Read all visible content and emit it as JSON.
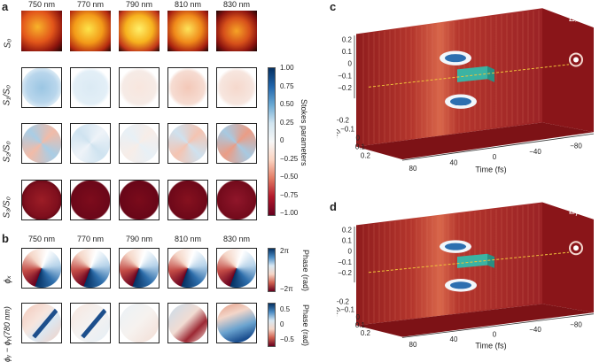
{
  "panels": {
    "a": "a",
    "b": "b",
    "c": "c",
    "d": "d"
  },
  "wavelengths": [
    "750 nm",
    "770 nm",
    "790 nm",
    "810 nm",
    "830 nm"
  ],
  "wavelengths_b": [
    "750 nm",
    "770 nm",
    "790 nm",
    "810 nm",
    "830 nm"
  ],
  "row_labels_a": [
    "S₀",
    "S₁/S₀",
    "S₂/S₀",
    "S₃/S₀"
  ],
  "row_labels_b": [
    "ϕₓ",
    "ϕᵧ − ϕᵧ(780 nm)"
  ],
  "stokes_cbar": {
    "title": "Stokes parameters",
    "ticks": [
      "1.00",
      "0.75",
      "0.50",
      "0.25",
      "0",
      "−0.25",
      "−0.50",
      "−0.75",
      "−1.00"
    ]
  },
  "phase_cbar1": {
    "title": "Phase (rad)",
    "ticks": [
      "2π",
      "−2π"
    ]
  },
  "phase_cbar2": {
    "title": "Phase (rad)",
    "ticks": [
      "0.5",
      "0",
      "−0.5"
    ]
  },
  "plot_c": {
    "field": "Eₓ",
    "yaxis": "y (mm)",
    "xaxis": "x (mm)",
    "taxis": "Time (fs)",
    "yticks": [
      "0.2",
      "0.1",
      "0",
      "−0.1",
      "−0.2"
    ],
    "xticks": [
      "−0.2",
      "−0.1",
      "0",
      "0.1",
      "0.2"
    ],
    "tticks": [
      "80",
      "40",
      "0",
      "−40",
      "−80"
    ]
  },
  "plot_d": {
    "field": "Eᵧ",
    "yaxis": "y (mm)",
    "xaxis": "x (mm)",
    "taxis": "Time (fs)",
    "yticks": [
      "0.2",
      "0.1",
      "0",
      "−0.1",
      "−0.2"
    ],
    "xticks": [
      "−0.2",
      "−0.1",
      "0",
      "0.1",
      "0.2"
    ],
    "tticks": [
      "80",
      "40",
      "0",
      "−40",
      "−80"
    ]
  },
  "colors": {
    "s0_hot": "#f6c21e",
    "s0_dark": "#6a0a0a",
    "pos": "#2c6aa6",
    "neg": "#a8152b",
    "teal": "#3bb3a3",
    "red_bg": "#b4302a"
  }
}
